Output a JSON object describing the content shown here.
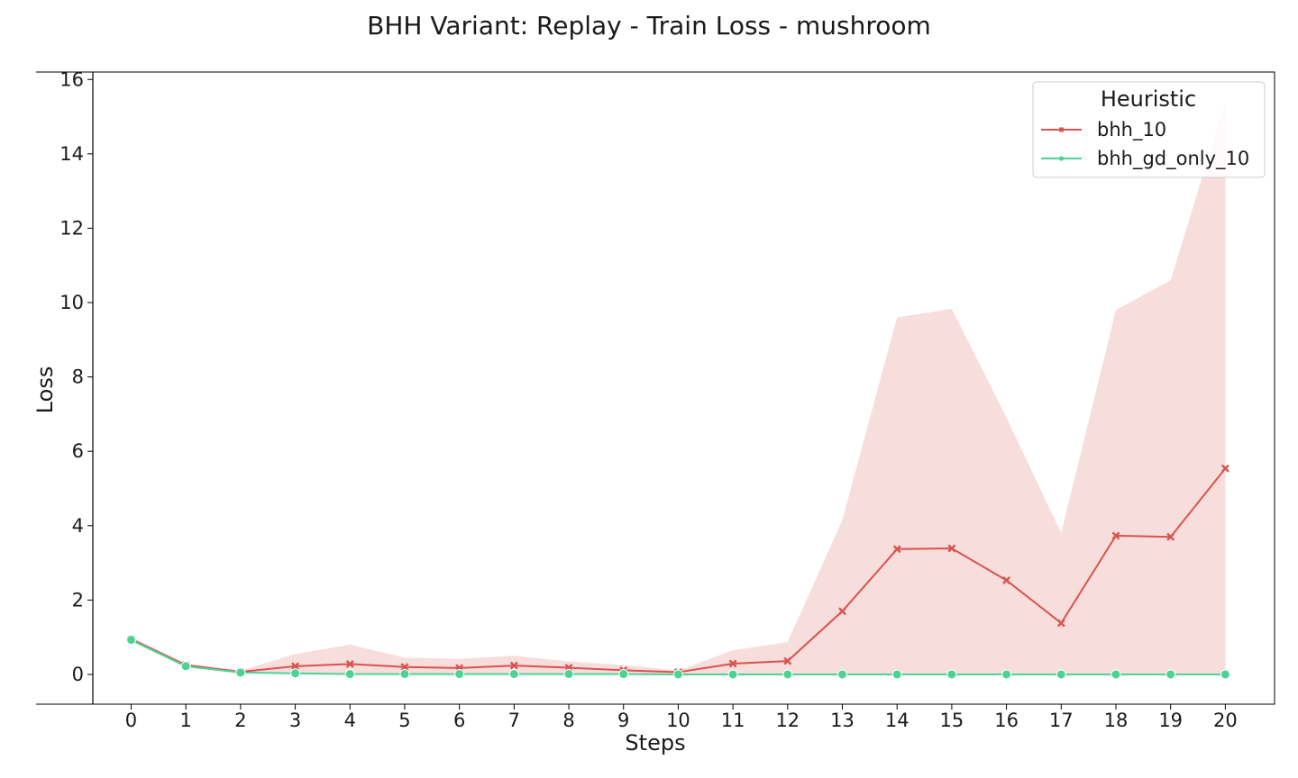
{
  "chart_data": {
    "type": "line",
    "title": "BHH Variant: Replay - Train Loss - mushroom",
    "xlabel": "Steps",
    "ylabel": "Loss",
    "x": [
      0,
      1,
      2,
      3,
      4,
      5,
      6,
      7,
      8,
      9,
      10,
      11,
      12,
      13,
      14,
      15,
      16,
      17,
      18,
      19,
      20
    ],
    "xlim": [
      -0.7,
      20.9
    ],
    "ylim": [
      -0.8,
      16.2
    ],
    "xticks": [
      0,
      1,
      2,
      3,
      4,
      5,
      6,
      7,
      8,
      9,
      10,
      11,
      12,
      13,
      14,
      15,
      16,
      17,
      18,
      19,
      20
    ],
    "yticks": [
      0,
      2,
      4,
      6,
      8,
      10,
      12,
      14,
      16
    ],
    "legend": {
      "title": "Heuristic",
      "position": "top-right"
    },
    "grid": false,
    "series": [
      {
        "name": "bhh_10",
        "color": "#d9534f",
        "marker": "x",
        "values": [
          0.95,
          0.25,
          0.07,
          0.22,
          0.28,
          0.2,
          0.17,
          0.24,
          0.18,
          0.11,
          0.06,
          0.29,
          0.36,
          1.7,
          3.37,
          3.39,
          2.53,
          1.38,
          3.73,
          3.7,
          5.54
        ],
        "ci_lower": [
          0.9,
          0.2,
          0.03,
          0.02,
          0.01,
          0.01,
          0.01,
          0.02,
          0.01,
          0.01,
          0.0,
          0.01,
          0.01,
          0.0,
          0.0,
          0.0,
          0.0,
          0.0,
          0.0,
          0.0,
          0.0
        ],
        "ci_upper": [
          1.0,
          0.3,
          0.1,
          0.55,
          0.8,
          0.45,
          0.42,
          0.5,
          0.35,
          0.25,
          0.1,
          0.65,
          0.87,
          4.15,
          9.6,
          9.83,
          6.9,
          3.8,
          9.8,
          10.6,
          15.4
        ]
      },
      {
        "name": "bhh_gd_only_10",
        "color": "#4cd394",
        "marker": "o",
        "values": [
          0.93,
          0.22,
          0.05,
          0.03,
          0.01,
          0.01,
          0.01,
          0.01,
          0.01,
          0.01,
          0.0,
          0.0,
          0.0,
          0.0,
          0.0,
          0.0,
          0.0,
          0.0,
          0.0,
          0.0,
          0.0
        ],
        "ci_lower": [
          0.88,
          0.19,
          0.04,
          0.02,
          0.0,
          0.0,
          0.0,
          0.0,
          0.0,
          0.0,
          0.0,
          0.0,
          0.0,
          0.0,
          0.0,
          0.0,
          0.0,
          0.0,
          0.0,
          0.0,
          0.0
        ],
        "ci_upper": [
          0.98,
          0.25,
          0.06,
          0.04,
          0.02,
          0.02,
          0.02,
          0.02,
          0.02,
          0.02,
          0.01,
          0.01,
          0.01,
          0.01,
          0.01,
          0.01,
          0.01,
          0.01,
          0.01,
          0.01,
          0.01
        ]
      }
    ]
  }
}
